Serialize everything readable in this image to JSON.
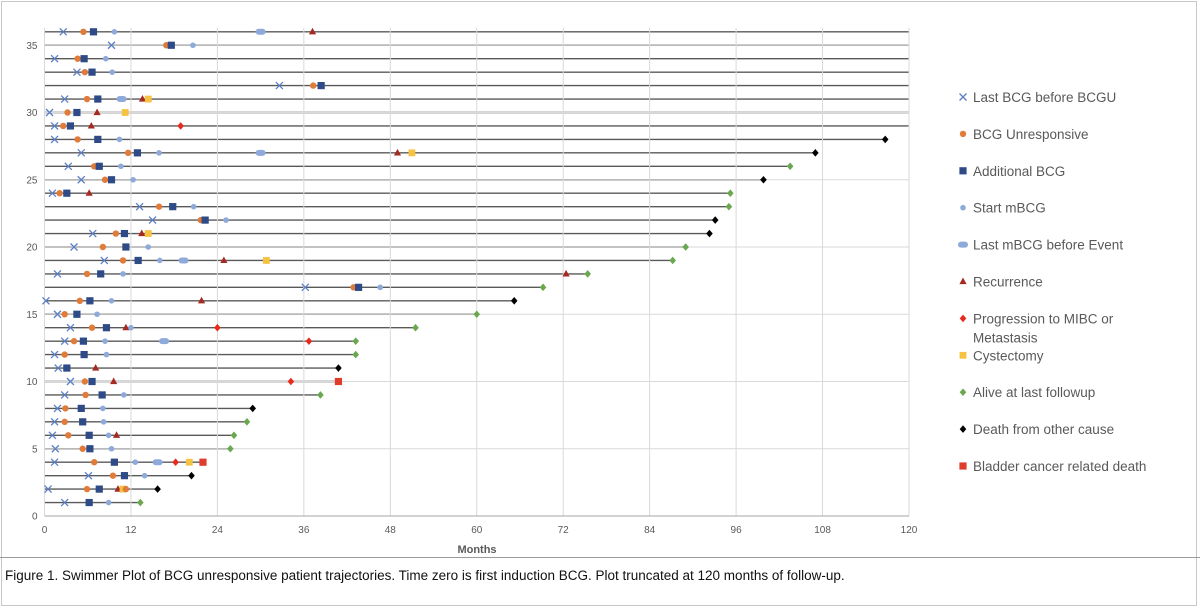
{
  "caption": "Figure 1. Swimmer Plot of BCG unresponsive patient trajectories. Time zero is first induction BCG. Plot truncated at 120 months of follow-up.",
  "chart_data": {
    "type": "swimmer",
    "xlabel": "Months",
    "ylabel": "",
    "xlim": [
      0,
      120
    ],
    "ylim": [
      0,
      36
    ],
    "x_ticks": [
      0,
      12,
      24,
      36,
      48,
      60,
      72,
      84,
      96,
      108,
      120
    ],
    "y_ticks": [
      0,
      5,
      10,
      15,
      20,
      25,
      30,
      35
    ],
    "grid": true,
    "legend_position": "right",
    "legend": [
      {
        "key": "last_bcg",
        "label": "Last BCG before BCGU",
        "marker": "x",
        "color": "#5b7fc7"
      },
      {
        "key": "unresp",
        "label": "BCG Unresponsive",
        "marker": "circle",
        "color": "#e07b39"
      },
      {
        "key": "add_bcg",
        "label": "Additional BCG",
        "marker": "square",
        "color": "#2e4a87"
      },
      {
        "key": "start_mbcg",
        "label": "Start mBCG",
        "marker": "small-circle",
        "color": "#8eaadb"
      },
      {
        "key": "last_mbcg",
        "label": "Last mBCG before Event",
        "marker": "pill",
        "color": "#8eaadb"
      },
      {
        "key": "recurrence",
        "label": "Recurrence",
        "marker": "triangle",
        "color": "#a52a22"
      },
      {
        "key": "progression",
        "label": "Progression to MIBC or Metastasis",
        "label_lines": [
          "Progression to MIBC or",
          "Metastasis"
        ],
        "marker": "diamond",
        "color": "#e8291c"
      },
      {
        "key": "cystectomy",
        "label": "Cystectomy",
        "marker": "square",
        "color": "#f5c242"
      },
      {
        "key": "alive",
        "label": "Alive at last followup",
        "marker": "diamond",
        "color": "#6aa84f"
      },
      {
        "key": "death_other",
        "label": "Death from other cause",
        "marker": "diamond",
        "color": "#000000"
      },
      {
        "key": "bc_death",
        "label": "Bladder cancer related death",
        "marker": "square",
        "color": "#e03c2c"
      }
    ],
    "patients": [
      {
        "row": 1,
        "length": 13.3,
        "events": [
          [
            2.8,
            "last_bcg"
          ],
          [
            6.2,
            "add_bcg"
          ],
          [
            8.9,
            "start_mbcg"
          ],
          [
            13.3,
            "alive"
          ]
        ]
      },
      {
        "row": 2,
        "length": 15.7,
        "events": [
          [
            0.5,
            "last_bcg"
          ],
          [
            5.9,
            "unresp"
          ],
          [
            7.6,
            "add_bcg"
          ],
          [
            10.2,
            "recurrence"
          ],
          [
            10.9,
            "cystectomy"
          ],
          [
            11.3,
            "unresp"
          ],
          [
            15.7,
            "death_other"
          ]
        ]
      },
      {
        "row": 3,
        "length": 20.4,
        "events": [
          [
            6.1,
            "last_bcg"
          ],
          [
            9.5,
            "unresp"
          ],
          [
            11.1,
            "add_bcg"
          ],
          [
            13.9,
            "start_mbcg"
          ],
          [
            20.4,
            "death_other"
          ]
        ]
      },
      {
        "row": 4,
        "length": 22.0,
        "events": [
          [
            1.4,
            "last_bcg"
          ],
          [
            6.9,
            "unresp"
          ],
          [
            9.7,
            "add_bcg"
          ],
          [
            12.6,
            "start_mbcg"
          ],
          [
            15.7,
            "last_mbcg"
          ],
          [
            18.2,
            "progression"
          ],
          [
            20.1,
            "cystectomy"
          ],
          [
            22.0,
            "bc_death"
          ]
        ]
      },
      {
        "row": 5,
        "length": 25.8,
        "events": [
          [
            1.5,
            "last_bcg"
          ],
          [
            5.3,
            "unresp"
          ],
          [
            6.3,
            "add_bcg"
          ],
          [
            9.3,
            "start_mbcg"
          ],
          [
            25.8,
            "alive"
          ]
        ]
      },
      {
        "row": 6,
        "length": 26.3,
        "events": [
          [
            1.1,
            "last_bcg"
          ],
          [
            3.3,
            "unresp"
          ],
          [
            6.2,
            "add_bcg"
          ],
          [
            8.9,
            "start_mbcg"
          ],
          [
            10.0,
            "recurrence"
          ],
          [
            26.3,
            "alive"
          ]
        ]
      },
      {
        "row": 7,
        "length": 28.1,
        "events": [
          [
            1.4,
            "last_bcg"
          ],
          [
            2.8,
            "unresp"
          ],
          [
            5.3,
            "add_bcg"
          ],
          [
            8.2,
            "start_mbcg"
          ],
          [
            28.1,
            "alive"
          ]
        ]
      },
      {
        "row": 8,
        "length": 28.9,
        "events": [
          [
            1.8,
            "last_bcg"
          ],
          [
            2.9,
            "unresp"
          ],
          [
            5.1,
            "add_bcg"
          ],
          [
            8.1,
            "start_mbcg"
          ],
          [
            28.9,
            "death_other"
          ]
        ]
      },
      {
        "row": 9,
        "length": 38.3,
        "events": [
          [
            2.8,
            "last_bcg"
          ],
          [
            5.7,
            "unresp"
          ],
          [
            8.0,
            "add_bcg"
          ],
          [
            11.0,
            "start_mbcg"
          ],
          [
            38.3,
            "alive"
          ]
        ]
      },
      {
        "row": 10,
        "length": 40.8,
        "events": [
          [
            3.6,
            "last_bcg"
          ],
          [
            5.6,
            "unresp"
          ],
          [
            6.6,
            "add_bcg"
          ],
          [
            9.6,
            "recurrence"
          ],
          [
            34.2,
            "progression"
          ],
          [
            40.8,
            "bc_death"
          ]
        ]
      },
      {
        "row": 11,
        "length": 40.8,
        "events": [
          [
            1.9,
            "last_bcg"
          ],
          [
            3.1,
            "add_bcg"
          ],
          [
            7.1,
            "recurrence"
          ],
          [
            40.8,
            "death_other"
          ]
        ]
      },
      {
        "row": 12,
        "length": 43.2,
        "events": [
          [
            1.4,
            "last_bcg"
          ],
          [
            2.8,
            "unresp"
          ],
          [
            5.5,
            "add_bcg"
          ],
          [
            8.6,
            "start_mbcg"
          ],
          [
            43.2,
            "alive"
          ]
        ]
      },
      {
        "row": 13,
        "length": 43.2,
        "events": [
          [
            2.8,
            "last_bcg"
          ],
          [
            4.1,
            "unresp"
          ],
          [
            5.4,
            "add_bcg"
          ],
          [
            8.4,
            "start_mbcg"
          ],
          [
            16.6,
            "last_mbcg"
          ],
          [
            36.7,
            "progression"
          ],
          [
            43.2,
            "alive"
          ]
        ]
      },
      {
        "row": 14,
        "length": 51.5,
        "events": [
          [
            3.6,
            "last_bcg"
          ],
          [
            6.6,
            "unresp"
          ],
          [
            8.6,
            "add_bcg"
          ],
          [
            11.3,
            "recurrence"
          ],
          [
            12.0,
            "start_mbcg"
          ],
          [
            24.0,
            "progression"
          ],
          [
            51.5,
            "alive"
          ]
        ]
      },
      {
        "row": 15,
        "length": 60.0,
        "events": [
          [
            1.8,
            "last_bcg"
          ],
          [
            2.8,
            "unresp"
          ],
          [
            4.5,
            "add_bcg"
          ],
          [
            7.3,
            "start_mbcg"
          ],
          [
            60.0,
            "alive"
          ]
        ]
      },
      {
        "row": 16,
        "length": 65.2,
        "events": [
          [
            0.2,
            "last_bcg"
          ],
          [
            4.9,
            "unresp"
          ],
          [
            6.3,
            "add_bcg"
          ],
          [
            9.3,
            "start_mbcg"
          ],
          [
            21.8,
            "recurrence"
          ],
          [
            65.2,
            "death_other"
          ]
        ]
      },
      {
        "row": 17,
        "length": 69.2,
        "events": [
          [
            36.2,
            "last_bcg"
          ],
          [
            42.9,
            "unresp"
          ],
          [
            43.6,
            "add_bcg"
          ],
          [
            46.6,
            "start_mbcg"
          ],
          [
            69.2,
            "alive"
          ]
        ]
      },
      {
        "row": 18,
        "length": 75.4,
        "events": [
          [
            1.8,
            "last_bcg"
          ],
          [
            5.9,
            "unresp"
          ],
          [
            7.8,
            "add_bcg"
          ],
          [
            10.9,
            "start_mbcg"
          ],
          [
            72.4,
            "recurrence"
          ],
          [
            75.4,
            "alive"
          ]
        ]
      },
      {
        "row": 19,
        "length": 87.2,
        "events": [
          [
            8.3,
            "last_bcg"
          ],
          [
            10.9,
            "unresp"
          ],
          [
            13.0,
            "add_bcg"
          ],
          [
            16.0,
            "start_mbcg"
          ],
          [
            19.3,
            "last_mbcg"
          ],
          [
            24.9,
            "recurrence"
          ],
          [
            30.8,
            "cystectomy"
          ],
          [
            87.2,
            "alive"
          ]
        ]
      },
      {
        "row": 20,
        "length": 89.0,
        "events": [
          [
            4.1,
            "last_bcg"
          ],
          [
            8.1,
            "unresp"
          ],
          [
            11.3,
            "add_bcg"
          ],
          [
            14.4,
            "start_mbcg"
          ],
          [
            89.0,
            "alive"
          ]
        ]
      },
      {
        "row": 21,
        "length": 92.3,
        "events": [
          [
            6.7,
            "last_bcg"
          ],
          [
            9.9,
            "unresp"
          ],
          [
            11.1,
            "add_bcg"
          ],
          [
            13.5,
            "recurrence"
          ],
          [
            14.4,
            "cystectomy"
          ],
          [
            92.3,
            "death_other"
          ]
        ]
      },
      {
        "row": 22,
        "length": 93.1,
        "events": [
          [
            15.0,
            "last_bcg"
          ],
          [
            21.7,
            "unresp"
          ],
          [
            22.3,
            "add_bcg"
          ],
          [
            25.2,
            "start_mbcg"
          ],
          [
            93.1,
            "death_other"
          ]
        ]
      },
      {
        "row": 23,
        "length": 95.0,
        "events": [
          [
            13.2,
            "last_bcg"
          ],
          [
            15.9,
            "unresp"
          ],
          [
            17.8,
            "add_bcg"
          ],
          [
            20.7,
            "start_mbcg"
          ],
          [
            95.0,
            "alive"
          ]
        ]
      },
      {
        "row": 24,
        "length": 95.2,
        "events": [
          [
            1.1,
            "last_bcg"
          ],
          [
            2.1,
            "unresp"
          ],
          [
            3.1,
            "add_bcg"
          ],
          [
            6.2,
            "recurrence"
          ],
          [
            95.2,
            "alive"
          ]
        ]
      },
      {
        "row": 25,
        "length": 99.8,
        "events": [
          [
            5.1,
            "last_bcg"
          ],
          [
            8.4,
            "unresp"
          ],
          [
            9.3,
            "add_bcg"
          ],
          [
            12.3,
            "start_mbcg"
          ],
          [
            99.8,
            "death_other"
          ]
        ]
      },
      {
        "row": 26,
        "length": 103.5,
        "events": [
          [
            3.3,
            "last_bcg"
          ],
          [
            6.9,
            "unresp"
          ],
          [
            7.6,
            "add_bcg"
          ],
          [
            10.6,
            "start_mbcg"
          ],
          [
            103.5,
            "alive"
          ]
        ]
      },
      {
        "row": 27,
        "length": 107.0,
        "events": [
          [
            5.1,
            "last_bcg"
          ],
          [
            11.6,
            "unresp"
          ],
          [
            12.9,
            "add_bcg"
          ],
          [
            15.9,
            "start_mbcg"
          ],
          [
            30.0,
            "last_mbcg"
          ],
          [
            49.0,
            "recurrence"
          ],
          [
            51.0,
            "cystectomy"
          ],
          [
            107.0,
            "death_other"
          ]
        ]
      },
      {
        "row": 28,
        "length": 116.7,
        "events": [
          [
            1.4,
            "last_bcg"
          ],
          [
            4.6,
            "unresp"
          ],
          [
            7.4,
            "add_bcg"
          ],
          [
            10.4,
            "start_mbcg"
          ],
          [
            116.7,
            "death_other"
          ]
        ]
      },
      {
        "row": 29,
        "length": 120,
        "events": [
          [
            1.4,
            "last_bcg"
          ],
          [
            2.6,
            "unresp"
          ],
          [
            3.6,
            "add_bcg"
          ],
          [
            6.5,
            "recurrence"
          ],
          [
            18.9,
            "progression"
          ]
        ]
      },
      {
        "row": 30,
        "length": 120,
        "events": [
          [
            0.7,
            "last_bcg"
          ],
          [
            3.2,
            "unresp"
          ],
          [
            4.5,
            "add_bcg"
          ],
          [
            7.3,
            "recurrence"
          ],
          [
            11.2,
            "cystectomy"
          ]
        ]
      },
      {
        "row": 31,
        "length": 120,
        "events": [
          [
            2.8,
            "last_bcg"
          ],
          [
            5.9,
            "unresp"
          ],
          [
            7.4,
            "add_bcg"
          ],
          [
            10.7,
            "last_mbcg"
          ],
          [
            13.6,
            "recurrence"
          ],
          [
            14.4,
            "cystectomy"
          ]
        ]
      },
      {
        "row": 32,
        "length": 120,
        "events": [
          [
            32.6,
            "last_bcg"
          ],
          [
            37.3,
            "unresp"
          ],
          [
            38.4,
            "add_bcg"
          ]
        ]
      },
      {
        "row": 33,
        "length": 120,
        "events": [
          [
            4.5,
            "last_bcg"
          ],
          [
            5.6,
            "unresp"
          ],
          [
            6.6,
            "add_bcg"
          ],
          [
            9.4,
            "start_mbcg"
          ]
        ]
      },
      {
        "row": 34,
        "length": 120,
        "events": [
          [
            1.4,
            "last_bcg"
          ],
          [
            4.6,
            "unresp"
          ],
          [
            5.5,
            "add_bcg"
          ],
          [
            8.5,
            "start_mbcg"
          ]
        ]
      },
      {
        "row": 35,
        "length": 120,
        "events": [
          [
            9.3,
            "last_bcg"
          ],
          [
            16.9,
            "unresp"
          ],
          [
            17.6,
            "add_bcg"
          ],
          [
            20.6,
            "start_mbcg"
          ]
        ]
      },
      {
        "row": 36,
        "length": 120,
        "events": [
          [
            2.6,
            "last_bcg"
          ],
          [
            5.4,
            "unresp"
          ],
          [
            6.8,
            "add_bcg"
          ],
          [
            9.7,
            "start_mbcg"
          ],
          [
            30.0,
            "last_mbcg"
          ],
          [
            37.2,
            "recurrence"
          ]
        ]
      }
    ]
  }
}
